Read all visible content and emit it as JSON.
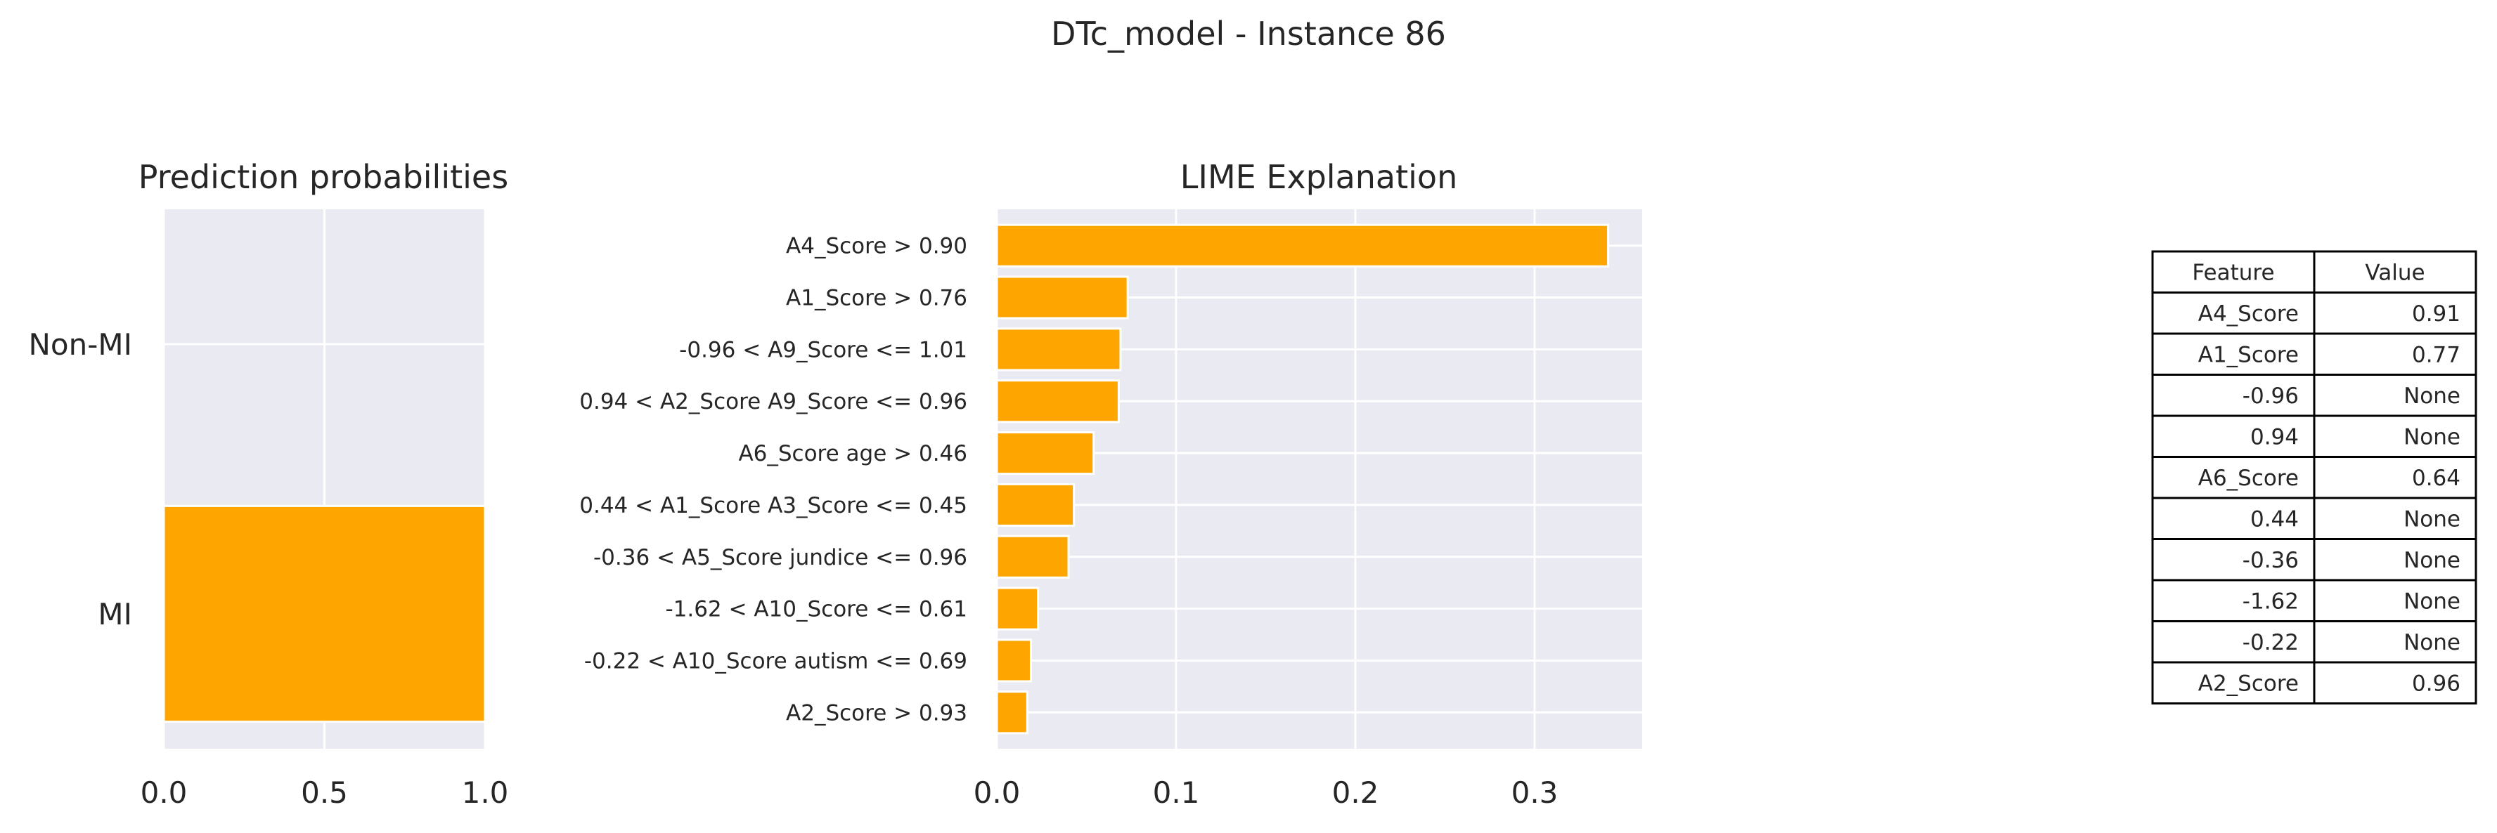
{
  "figure": {
    "suptitle": "DTc_model - Instance 86"
  },
  "colors": {
    "bar": "#FFA500",
    "axes_bg": "#EAEAF2",
    "grid": "#FFFFFF",
    "text": "#262626"
  },
  "chart_data": [
    {
      "type": "bar",
      "orientation": "horizontal",
      "title": "Prediction probabilities",
      "categories": [
        "Non-MI",
        "MI"
      ],
      "values": [
        0.0,
        1.0
      ],
      "xlim": [
        0,
        1
      ],
      "xticks": [
        "0.0",
        "0.5",
        "1.0"
      ],
      "grid": true
    },
    {
      "type": "bar",
      "orientation": "horizontal",
      "title": "LIME Explanation",
      "categories": [
        "A4_Score > 0.90",
        "A1_Score > 0.76",
        "-0.96 < A9_Score <= 1.01",
        "0.94 < A2_Score A9_Score <= 0.96",
        "A6_Score age > 0.46",
        "0.44 < A1_Score A3_Score <= 0.45",
        "-0.36 < A5_Score jundice <= 0.96",
        "-1.62 < A10_Score <= 0.61",
        "-0.22 < A10_Score autism <= 0.69",
        "A2_Score > 0.93"
      ],
      "values": [
        0.341,
        0.073,
        0.069,
        0.068,
        0.054,
        0.043,
        0.04,
        0.023,
        0.019,
        0.017
      ],
      "xlim": [
        0,
        0.36
      ],
      "xticks": [
        "0.0",
        "0.1",
        "0.2",
        "0.3"
      ],
      "grid": true
    },
    {
      "type": "table",
      "columns": [
        "Feature",
        "Value"
      ],
      "rows": [
        [
          "A4_Score",
          "0.91"
        ],
        [
          "A1_Score",
          "0.77"
        ],
        [
          "-0.96",
          "None"
        ],
        [
          "0.94",
          "None"
        ],
        [
          "A6_Score",
          "0.64"
        ],
        [
          "0.44",
          "None"
        ],
        [
          "-0.36",
          "None"
        ],
        [
          "-1.62",
          "None"
        ],
        [
          "-0.22",
          "None"
        ],
        [
          "A2_Score",
          "0.96"
        ]
      ]
    }
  ]
}
